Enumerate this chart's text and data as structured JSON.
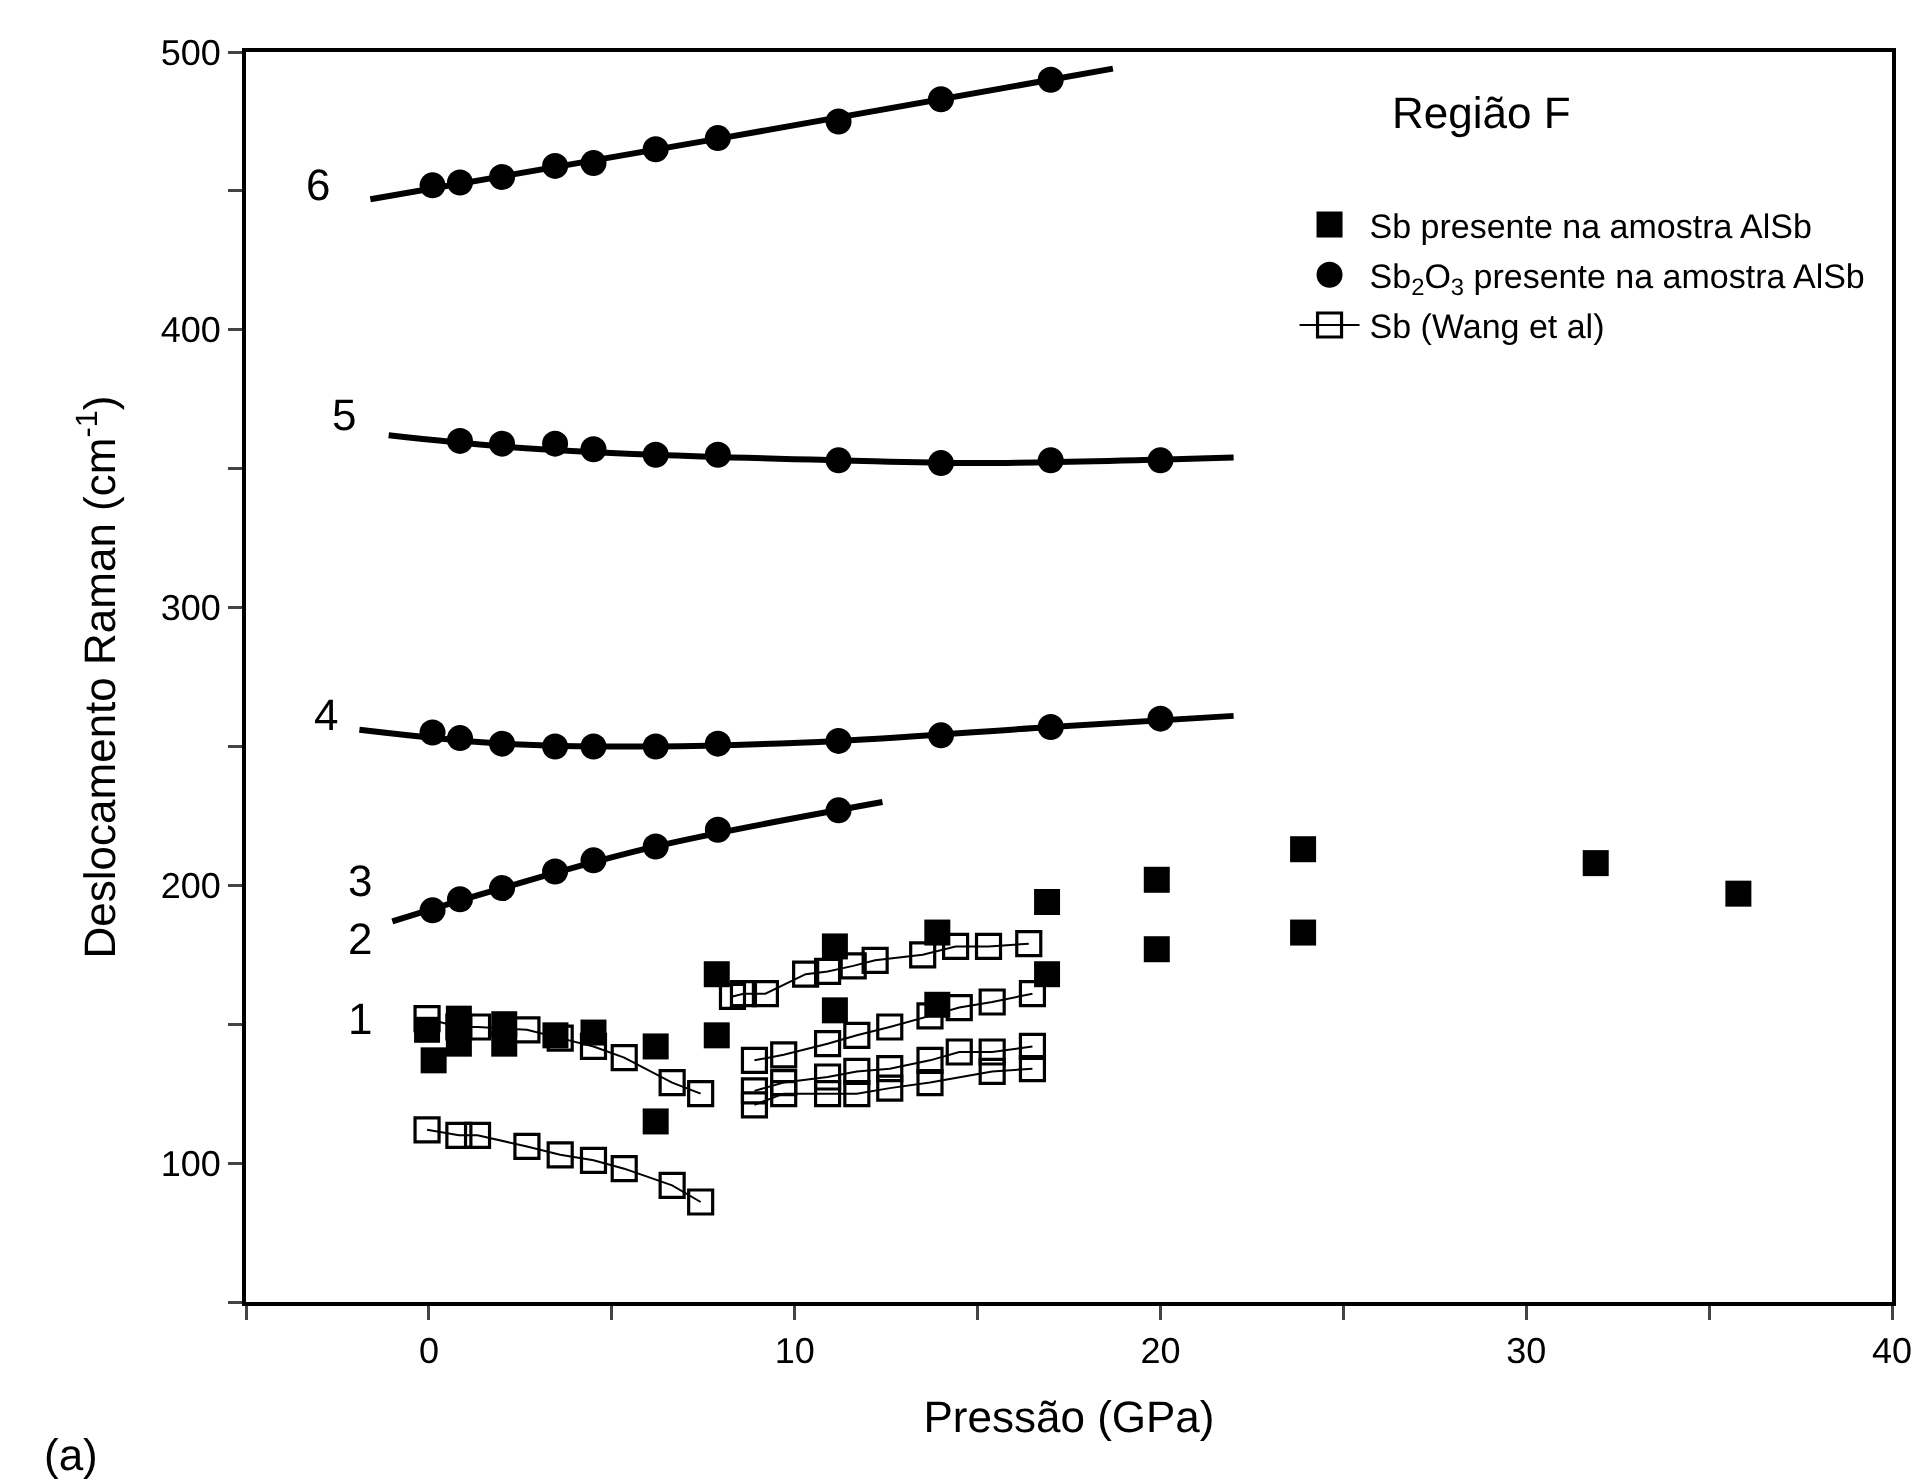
{
  "chart_data": {
    "type": "scatter",
    "xlabel": "Pressão (GPa)",
    "ylabel": "Deslocamento Raman (cm$^{-1}$)",
    "xlim": [
      -5,
      40
    ],
    "xticks": [
      {
        "value": -5,
        "label": null
      },
      0,
      {
        "value": 5,
        "label": null
      },
      10,
      {
        "value": 15,
        "label": null
      },
      20,
      {
        "value": 25,
        "label": null
      },
      30,
      {
        "value": 35,
        "label": null
      },
      40
    ],
    "ylim": [
      50,
      500
    ],
    "yticks": [
      {
        "value": 50,
        "label": null
      },
      100,
      {
        "value": 150,
        "label": null
      },
      200,
      {
        "value": 250,
        "label": null
      },
      300,
      {
        "value": 350,
        "label": null
      },
      400,
      {
        "value": 450,
        "label": null
      },
      500
    ],
    "grid": false,
    "legend": "top right",
    "series": [
      {
        "name": "Sb presente na amostra AlSb",
        "marker": "square",
        "color": "#000000",
        "x": [
          -0.05,
          0.13,
          0.82,
          0.82,
          2.06,
          2.06,
          3.46,
          4.5,
          6.2,
          6.2,
          7.87,
          7.87,
          11.1,
          11.1,
          13.9,
          13.9,
          16.9,
          16.9,
          19.9,
          19.9,
          23.9,
          23.9,
          31.9,
          35.8
        ],
        "values": [
          148,
          137,
          152,
          143,
          150,
          143,
          146,
          147,
          142,
          115,
          168,
          146,
          178,
          155,
          183,
          157,
          194,
          168,
          202,
          177,
          213,
          183,
          208,
          197
        ]
      },
      {
        "name": "Sb$_{2}$O$_{3}$ presente na amostra AlSb",
        "marker": "circle",
        "color": "#000000",
        "x": [
          0.1,
          0.85,
          2.0,
          3.45,
          4.5,
          6.2,
          7.9,
          11.2,
          14.0,
          17.0,
          0.85,
          2.0,
          3.45,
          4.5,
          6.2,
          7.9,
          11.2,
          14.0,
          17.0,
          20.0,
          0.1,
          0.85,
          2.0,
          3.45,
          4.5,
          6.2,
          7.9,
          11.2,
          14.0,
          17.0,
          20.0,
          0.1,
          0.85,
          2.0,
          3.45,
          4.5,
          6.2,
          7.9,
          11.2
        ],
        "values": [
          452,
          453,
          455,
          459,
          460,
          465,
          469,
          475,
          483,
          490,
          360,
          359,
          359,
          357,
          355,
          355,
          353,
          352,
          353,
          353,
          255,
          253,
          251,
          250,
          250,
          250,
          251,
          252,
          254,
          257,
          260,
          191,
          195,
          199,
          205,
          209,
          214,
          220,
          227
        ]
      },
      {
        "name": "Sb (Wang et al)",
        "type": "line",
        "marker": "square",
        "line_style": "solid",
        "color": "#000000",
        "x": [
          -0.05,
          0.82,
          1.33,
          2.68,
          3.59,
          4.5,
          5.34,
          6.65,
          7.43
        ],
        "values": [
          112,
          110,
          110,
          106,
          103,
          101,
          98,
          92,
          86
        ]
      },
      {
        "type": "line",
        "marker": "square",
        "line_style": "solid",
        "color": "#000000",
        "x": [
          -0.05,
          0.82,
          1.33,
          2.68,
          3.59,
          4.5,
          5.34,
          6.65,
          7.43
        ],
        "values": [
          152,
          149,
          149,
          148,
          145,
          142,
          138,
          129,
          125
        ]
      },
      {
        "type": "line",
        "marker": "square",
        "line_style": "solid",
        "color": "#000000",
        "x": [
          8.3,
          8.6,
          9.2,
          10.3,
          10.9,
          11.6,
          12.2,
          13.5,
          14.4,
          15.3,
          16.4
        ],
        "values": [
          160,
          161,
          161,
          168,
          169,
          171,
          173,
          175,
          178,
          178,
          179
        ]
      },
      {
        "type": "line",
        "marker": "square",
        "line_style": "solid",
        "color": "#000000",
        "x": [
          8.9,
          9.7,
          10.9,
          11.7,
          12.6,
          13.7,
          14.5,
          15.4,
          16.5
        ],
        "values": [
          137,
          139,
          143,
          146,
          149,
          153,
          156,
          158,
          161
        ]
      },
      {
        "type": "line",
        "marker": "square",
        "line_style": "solid",
        "color": "#000000",
        "x": [
          8.9,
          9.7,
          10.9,
          11.7,
          12.6,
          13.7,
          14.5,
          15.4,
          16.5
        ],
        "values": [
          126,
          129,
          131,
          133,
          134,
          137,
          140,
          140,
          142
        ]
      },
      {
        "type": "line",
        "marker": "square",
        "line_style": "solid",
        "color": "#000000",
        "x": [
          8.9,
          9.7,
          10.9,
          11.7,
          12.6,
          13.7,
          15.4,
          16.5
        ],
        "values": [
          121,
          125,
          125,
          125,
          127,
          129,
          133,
          134
        ]
      },
      {
        "type": "line",
        "marker": "none",
        "line_style": "solid",
        "color": "#000000",
        "x": [
          -1.6,
          8,
          18.7
        ],
        "values": [
          447,
          469,
          494
        ]
      },
      {
        "type": "line",
        "marker": "none",
        "line_style": "solid",
        "color": "#000000",
        "x": [
          -1.1,
          2,
          6.2,
          11.2,
          15,
          22
        ],
        "values": [
          362,
          358,
          355,
          353,
          352,
          354
        ]
      },
      {
        "type": "line",
        "marker": "none",
        "line_style": "solid",
        "color": "#000000",
        "x": [
          -1.9,
          2,
          6.2,
          11.2,
          17,
          22
        ],
        "values": [
          256,
          251,
          250,
          252,
          257,
          261
        ]
      },
      {
        "type": "line",
        "marker": "none",
        "line_style": "solid",
        "color": "#000000",
        "x": [
          -1,
          2,
          6.2,
          12.4
        ],
        "values": [
          187,
          199,
          214,
          230
        ]
      }
    ],
    "annotations": [
      "Região F",
      "(a)",
      "6",
      "5",
      "4",
      "3",
      "2",
      "1"
    ]
  }
}
